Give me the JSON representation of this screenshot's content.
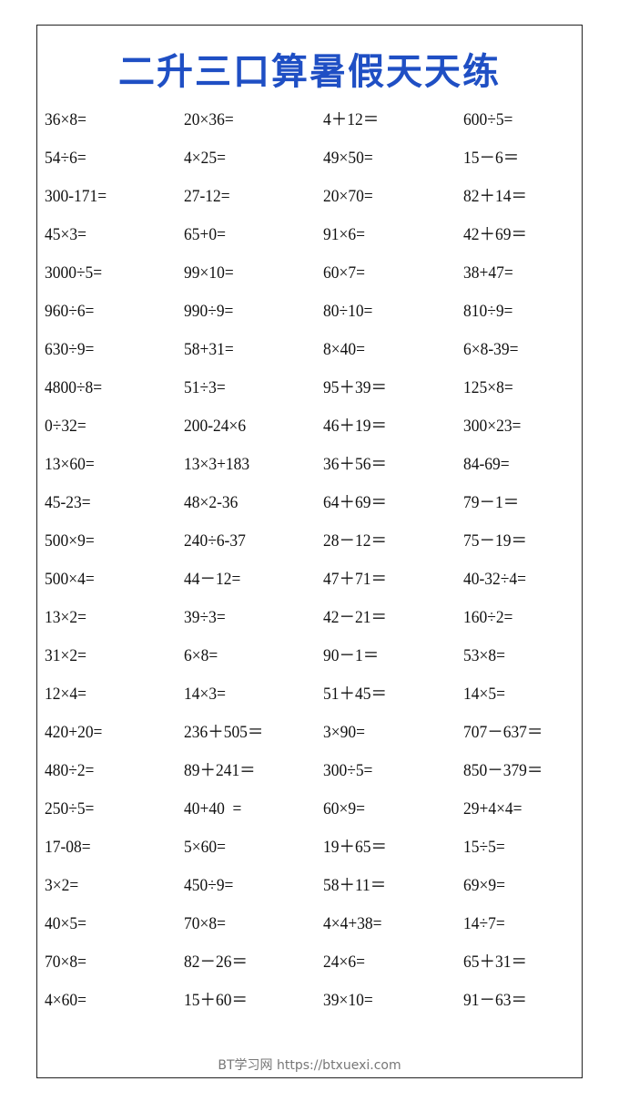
{
  "title": "二升三口算暑假天天练",
  "rows": [
    [
      "36×8=",
      "20×36=",
      "4＋12＝",
      "600÷5="
    ],
    [
      "54÷6=",
      "4×25=",
      "49×50=",
      "15－6＝"
    ],
    [
      "300-171=",
      "27-12=",
      "20×70=",
      "82＋14＝"
    ],
    [
      "45×3=",
      "65+0=",
      "91×6=",
      "42＋69＝"
    ],
    [
      "3000÷5=",
      "99×10=",
      "60×7=",
      "38+47="
    ],
    [
      "960÷6=",
      "990÷9=",
      "80÷10=",
      "810÷9="
    ],
    [
      "630÷9=",
      "58+31=",
      "8×40=",
      "6×8-39="
    ],
    [
      "4800÷8=",
      "51÷3=",
      "95＋39＝",
      "125×8="
    ],
    [
      "0÷32=",
      "200-24×6",
      "46＋19＝",
      "300×23="
    ],
    [
      "13×60=",
      "13×3+183",
      "36＋56＝",
      "84-69="
    ],
    [
      "45-23=",
      "48×2-36",
      "64＋69＝",
      "79－1＝"
    ],
    [
      "500×9=",
      "240÷6-37",
      "28－12＝",
      "75－19＝"
    ],
    [
      "500×4=",
      "44－12=",
      "47＋71＝",
      "40-32÷4="
    ],
    [
      "13×2=",
      "39÷3=",
      "42－21＝",
      "160÷2="
    ],
    [
      "31×2=",
      "6×8=",
      "90－1＝",
      "53×8="
    ],
    [
      "12×4=",
      "14×3=",
      "51＋45＝",
      "14×5="
    ],
    [
      "420+20=",
      "236＋505＝",
      "3×90=",
      "707－637＝"
    ],
    [
      "480÷2=",
      "89＋241＝",
      "300÷5=",
      "850－379＝"
    ],
    [
      "250÷5=",
      "40+40  =",
      "60×9=",
      "29+4×4="
    ],
    [
      "17-08=",
      "5×60=",
      "19＋65＝",
      "15÷5="
    ],
    [
      "3×2=",
      "450÷9=",
      "58＋11＝",
      "69×9="
    ],
    [
      "40×5=",
      "70×8=",
      "4×4+38=",
      "14÷7="
    ],
    [
      "70×8=",
      "82－26＝",
      "24×6=",
      "65＋31＝"
    ],
    [
      "4×60=",
      "15＋60＝",
      "39×10=",
      "91－63＝"
    ]
  ],
  "footer": "BT学习网 https://btxuexi.com",
  "colors": {
    "title": "#1f4fc4",
    "text": "#111111",
    "footer": "#777777"
  }
}
